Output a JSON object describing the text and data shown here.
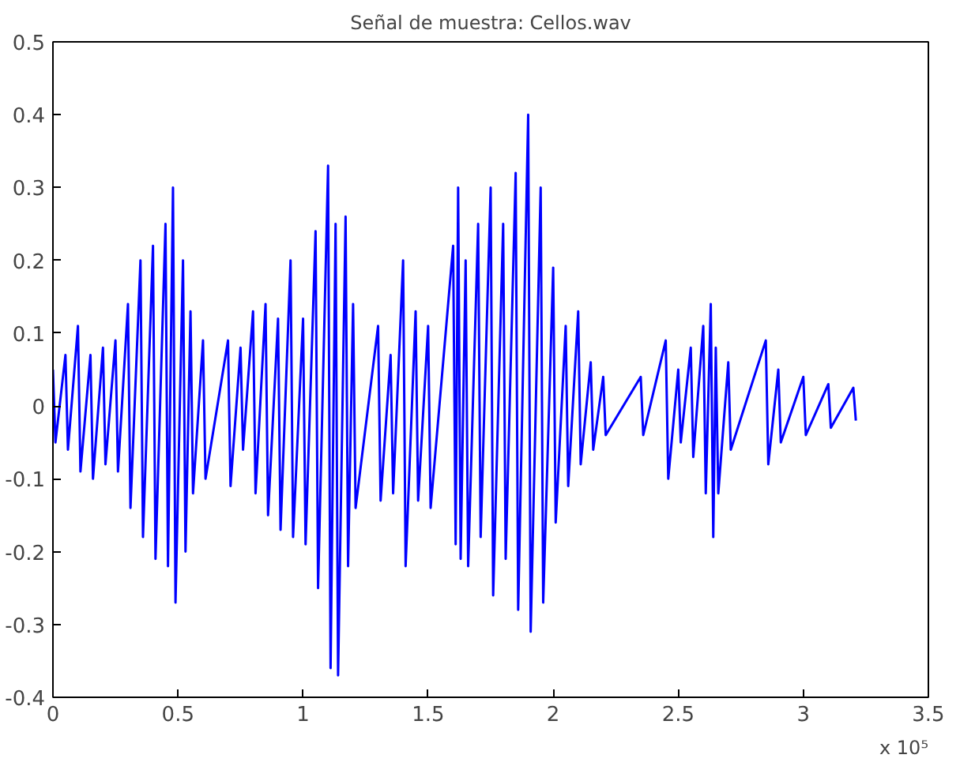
{
  "chart_data": {
    "type": "line",
    "title": "Señal de muestra: Cellos.wav",
    "annotations": [
      "x 10⁵"
    ],
    "xlim": [
      0,
      3.5
    ],
    "xticks": [
      0,
      0.5,
      1,
      1.5,
      2,
      2.5,
      3,
      3.5
    ],
    "ylim": [
      -0.4,
      0.5
    ],
    "yticks": [
      -0.4,
      -0.3,
      -0.2,
      -0.1,
      0,
      0.1,
      0.2,
      0.3,
      0.4,
      0.5
    ],
    "grid": false,
    "line_style": "solid",
    "series": [
      {
        "color": "#0000ff",
        "x": [
          0,
          0.01,
          0.05,
          0.06,
          0.1,
          0.11,
          0.15,
          0.16,
          0.2,
          0.21,
          0.25,
          0.26,
          0.3,
          0.31,
          0.35,
          0.36,
          0.4,
          0.41,
          0.45,
          0.46,
          0.48,
          0.49,
          0.52,
          0.53,
          0.55,
          0.56,
          0.6,
          0.61,
          0.7,
          0.71,
          0.75,
          0.76,
          0.8,
          0.81,
          0.85,
          0.86,
          0.9,
          0.91,
          0.95,
          0.96,
          1.0,
          1.01,
          1.05,
          1.06,
          1.1,
          1.11,
          1.13,
          1.14,
          1.17,
          1.18,
          1.2,
          1.21,
          1.3,
          1.31,
          1.35,
          1.36,
          1.4,
          1.41,
          1.45,
          1.46,
          1.5,
          1.51,
          1.6,
          1.61,
          1.62,
          1.63,
          1.65,
          1.66,
          1.7,
          1.71,
          1.75,
          1.76,
          1.8,
          1.81,
          1.85,
          1.86,
          1.9,
          1.91,
          1.95,
          1.96,
          2.0,
          2.01,
          2.05,
          2.06,
          2.1,
          2.11,
          2.15,
          2.16,
          2.2,
          2.21,
          2.35,
          2.36,
          2.45,
          2.46,
          2.5,
          2.51,
          2.55,
          2.56,
          2.6,
          2.61,
          2.63,
          2.64,
          2.65,
          2.66,
          2.7,
          2.71,
          2.85,
          2.86,
          2.9,
          2.91,
          3.0,
          3.01,
          3.1,
          3.11,
          3.2,
          3.21
        ],
        "values": [
          0.05,
          -0.05,
          0.07,
          -0.06,
          0.11,
          -0.09,
          0.07,
          -0.1,
          0.08,
          -0.08,
          0.09,
          -0.09,
          0.14,
          -0.14,
          0.2,
          -0.18,
          0.22,
          -0.21,
          0.25,
          -0.22,
          0.3,
          -0.27,
          0.2,
          -0.2,
          0.13,
          -0.12,
          0.09,
          -0.1,
          0.09,
          -0.11,
          0.08,
          -0.06,
          0.13,
          -0.12,
          0.14,
          -0.15,
          0.12,
          -0.17,
          0.2,
          -0.18,
          0.12,
          -0.19,
          0.24,
          -0.25,
          0.33,
          -0.36,
          0.25,
          -0.37,
          0.26,
          -0.22,
          0.14,
          -0.14,
          0.11,
          -0.13,
          0.07,
          -0.12,
          0.2,
          -0.22,
          0.13,
          -0.13,
          0.11,
          -0.14,
          0.22,
          -0.19,
          0.3,
          -0.21,
          0.2,
          -0.22,
          0.25,
          -0.18,
          0.3,
          -0.26,
          0.25,
          -0.21,
          0.32,
          -0.28,
          0.4,
          -0.31,
          0.3,
          -0.27,
          0.19,
          -0.16,
          0.11,
          -0.11,
          0.13,
          -0.08,
          0.06,
          -0.06,
          0.04,
          -0.04,
          0.04,
          -0.04,
          0.09,
          -0.1,
          0.05,
          -0.05,
          0.08,
          -0.07,
          0.11,
          -0.12,
          0.14,
          -0.18,
          0.08,
          -0.12,
          0.06,
          -0.06,
          0.09,
          -0.08,
          0.05,
          -0.05,
          0.04,
          -0.04,
          0.03,
          -0.03,
          0.025,
          -0.02
        ]
      }
    ]
  }
}
